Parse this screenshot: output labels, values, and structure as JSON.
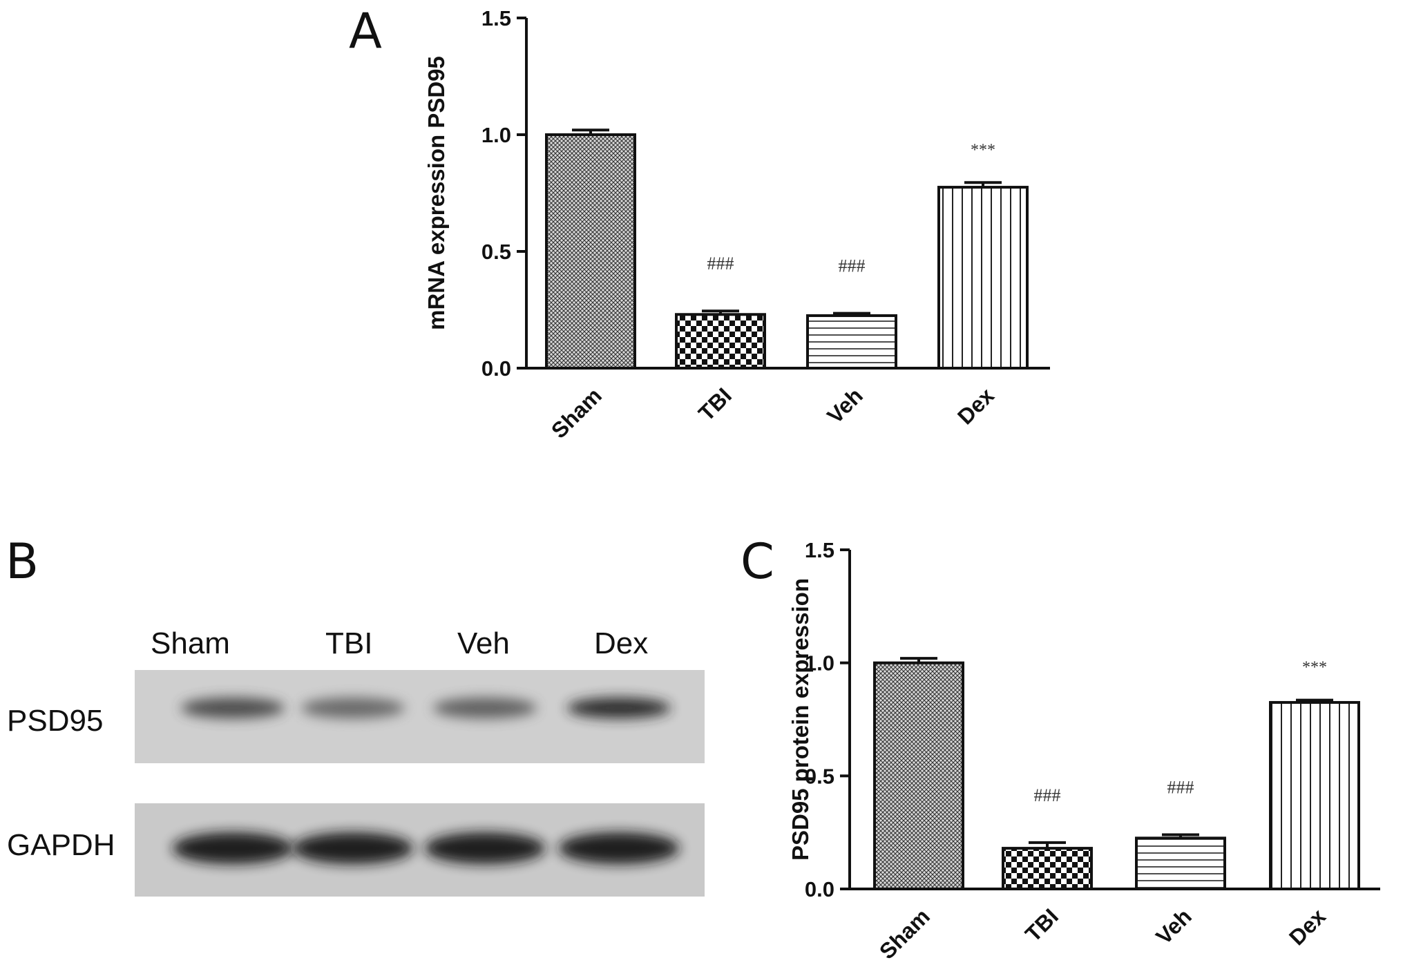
{
  "figure": {
    "panel_labels": [
      "A",
      "B",
      "C"
    ]
  },
  "blot": {
    "lanes": [
      "Sham",
      "TBI",
      "Veh",
      "Dex"
    ],
    "rows": [
      {
        "label": "PSD95",
        "intensity": [
          0.72,
          0.55,
          0.6,
          0.9
        ]
      },
      {
        "label": "GAPDH",
        "intensity": [
          1.0,
          1.0,
          1.0,
          1.0
        ]
      }
    ]
  },
  "chart_data": [
    {
      "type": "bar",
      "panel": "A",
      "ylabel": "mRNA expression PSD95",
      "xlabel": "",
      "ylim": [
        0,
        1.5
      ],
      "yticks": [
        "0.0",
        "0.5",
        "1.0",
        "1.5"
      ],
      "categories": [
        "Sham",
        "TBI",
        "Veh",
        "Dex"
      ],
      "values": [
        1.0,
        0.23,
        0.225,
        0.775
      ],
      "errors": [
        0.02,
        0.015,
        0.01,
        0.02
      ],
      "annotations": [
        "",
        "###",
        "###",
        "***"
      ],
      "fill_patterns": [
        "fine-crosshatch",
        "checker",
        "horizontal-lines",
        "vertical-lines"
      ]
    },
    {
      "type": "bar",
      "panel": "C",
      "ylabel": "PSD95 protein expression",
      "xlabel": "",
      "ylim": [
        0,
        1.5
      ],
      "yticks": [
        "0.0",
        "0.5",
        "1.0",
        "1.5"
      ],
      "categories": [
        "Sham",
        "TBI",
        "Veh",
        "Dex"
      ],
      "values": [
        1.0,
        0.18,
        0.225,
        0.825
      ],
      "errors": [
        0.02,
        0.025,
        0.015,
        0.01
      ],
      "annotations": [
        "",
        "###",
        "###",
        "***"
      ],
      "fill_patterns": [
        "fine-crosshatch",
        "checker",
        "horizontal-lines",
        "vertical-lines"
      ]
    }
  ]
}
